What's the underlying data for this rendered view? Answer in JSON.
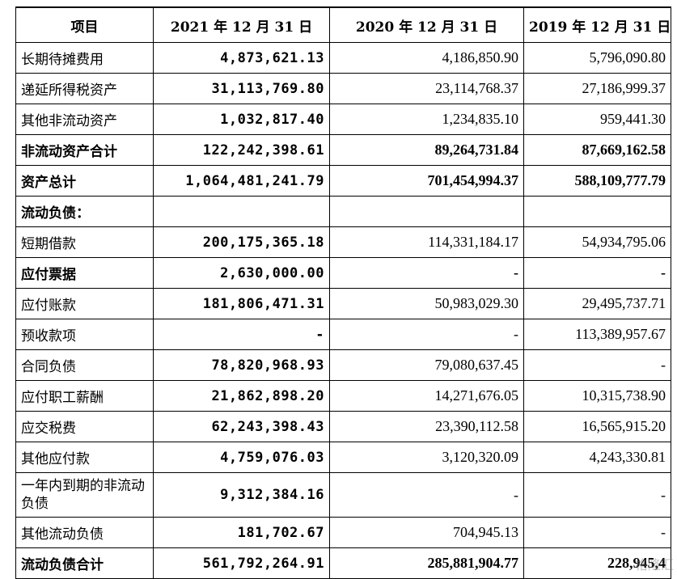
{
  "headers": [
    "项目",
    "2021 年 12 月 31 日",
    "2020 年 12 月 31 日",
    "2019 年 12 月 31 日"
  ],
  "rows": [
    {
      "label": "长期待摊费用",
      "v2021": "4,873,621.13",
      "v2020": "4,186,850.90",
      "v2019": "5,796,090.80",
      "bold": false
    },
    {
      "label": "递延所得税资产",
      "v2021": "31,113,769.80",
      "v2020": "23,114,768.37",
      "v2019": "27,186,999.37",
      "bold": false
    },
    {
      "label": "其他非流动资产",
      "v2021": "1,032,817.40",
      "v2020": "1,234,835.10",
      "v2019": "959,441.30",
      "bold": false
    },
    {
      "label": "非流动资产合计",
      "v2021": "122,242,398.61",
      "v2020": "89,264,731.84",
      "v2019": "87,669,162.58",
      "bold": true
    },
    {
      "label": "资产总计",
      "v2021": "1,064,481,241.79",
      "v2020": "701,454,994.37",
      "v2019": "588,109,777.79",
      "bold": true
    },
    {
      "label": "流动负债：",
      "v2021": "",
      "v2020": "",
      "v2019": "",
      "bold": true
    },
    {
      "label": "短期借款",
      "v2021": "200,175,365.18",
      "v2020": "114,331,184.17",
      "v2019": "54,934,795.06",
      "bold": false
    },
    {
      "label": "应付票据",
      "v2021": "2,630,000.00",
      "v2020": "-",
      "v2019": "-",
      "bold": true
    },
    {
      "label": "应付账款",
      "v2021": "181,806,471.31",
      "v2020": "50,983,029.30",
      "v2019": "29,495,737.71",
      "bold": false
    },
    {
      "label": "预收款项",
      "v2021": "-",
      "v2020": "-",
      "v2019": "113,389,957.67",
      "bold": false
    },
    {
      "label": "合同负债",
      "v2021": "78,820,968.93",
      "v2020": "79,080,637.45",
      "v2019": "-",
      "bold": false
    },
    {
      "label": "应付职工薪酬",
      "v2021": "21,862,898.20",
      "v2020": "14,271,676.05",
      "v2019": "10,315,738.90",
      "bold": false
    },
    {
      "label": "应交税费",
      "v2021": "62,243,398.43",
      "v2020": "23,390,112.58",
      "v2019": "16,565,915.20",
      "bold": false
    },
    {
      "label": "其他应付款",
      "v2021": "4,759,076.03",
      "v2020": "3,120,320.09",
      "v2019": "4,243,330.81",
      "bold": false
    },
    {
      "label": "一年内到期的非流动负债",
      "v2021": "9,312,384.16",
      "v2020": "-",
      "v2019": "-",
      "bold": false,
      "tall": true
    },
    {
      "label": "其他流动负债",
      "v2021": "181,702.67",
      "v2020": "704,945.13",
      "v2019": "-",
      "bold": false
    },
    {
      "label": "流动负债合计",
      "v2021": "561,792,264.91",
      "v2020": "285,881,904.77",
      "v2019": "228,945,4",
      "bold": true
    }
  ],
  "watermark": "格隆汇"
}
